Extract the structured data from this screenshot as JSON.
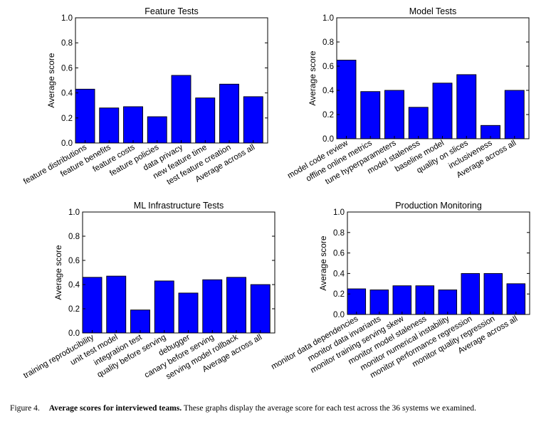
{
  "chart_data": [
    {
      "type": "bar",
      "title": "Feature Tests",
      "ylabel": "Average score",
      "ylim": [
        0,
        1.0
      ],
      "yticks": [
        "0.0",
        "0.2",
        "0.4",
        "0.6",
        "0.8",
        "1.0"
      ],
      "categories": [
        "feature distributions",
        "feature benefits",
        "feature costs",
        "feature policies",
        "data privacy",
        "new feature time",
        "test feature creation",
        "Average across all"
      ],
      "values": [
        0.43,
        0.28,
        0.29,
        0.21,
        0.54,
        0.36,
        0.47,
        0.37
      ],
      "bar_color": "#0000ff",
      "grid": false
    },
    {
      "type": "bar",
      "title": "Model Tests",
      "ylabel": "Average score",
      "ylim": [
        0,
        1.0
      ],
      "yticks": [
        "0.0",
        "0.2",
        "0.4",
        "0.6",
        "0.8",
        "1.0"
      ],
      "categories": [
        "model code review",
        "offline online metrics",
        "tune hyperparameters",
        "model staleness",
        "baseline model",
        "quality on slices",
        "inclusiveness",
        "Average across all"
      ],
      "values": [
        0.65,
        0.39,
        0.4,
        0.26,
        0.46,
        0.53,
        0.11,
        0.4
      ],
      "bar_color": "#0000ff",
      "grid": false
    },
    {
      "type": "bar",
      "title": "ML Infrastructure Tests",
      "ylabel": "Average score",
      "ylim": [
        0,
        1.0
      ],
      "yticks": [
        "0.0",
        "0.2",
        "0.4",
        "0.6",
        "0.8",
        "1.0"
      ],
      "categories": [
        "training reproducibility",
        "unit test model",
        "integration test",
        "quality before serving",
        "debugger",
        "canary before serving",
        "serving model rollback",
        "Average across all"
      ],
      "values": [
        0.46,
        0.47,
        0.19,
        0.43,
        0.33,
        0.44,
        0.46,
        0.4
      ],
      "bar_color": "#0000ff",
      "grid": false
    },
    {
      "type": "bar",
      "title": "Production Monitoring",
      "ylabel": "Average score",
      "ylim": [
        0,
        1.0
      ],
      "yticks": [
        "0.0",
        "0.2",
        "0.4",
        "0.6",
        "0.8",
        "1.0"
      ],
      "categories": [
        "monitor data dependencies",
        "monitor data invariants",
        "monitor training serving skew",
        "monitor model staleness",
        "monitor numerical instability",
        "monitor performance regression",
        "monitor quality regression",
        "Average across all"
      ],
      "values": [
        0.25,
        0.24,
        0.28,
        0.28,
        0.24,
        0.4,
        0.4,
        0.3
      ],
      "bar_color": "#0000ff",
      "grid": false
    }
  ],
  "caption": {
    "figure_label": "Figure 4.",
    "bold_text": "Average scores for interviewed teams.",
    "text": " These graphs display the average score for each test across the 36 systems we examined."
  }
}
